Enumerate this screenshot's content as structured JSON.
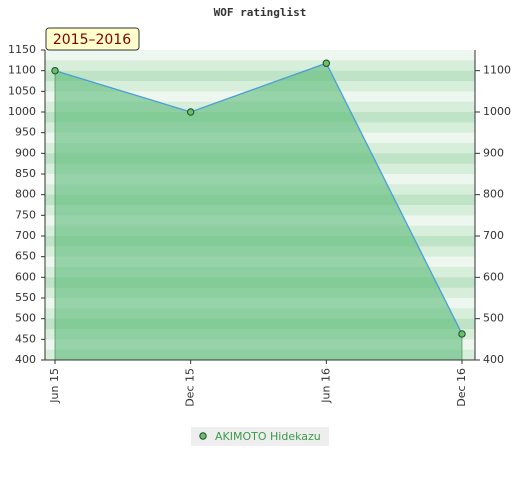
{
  "chart_data": {
    "type": "area",
    "title": "WOF ratinglist",
    "annotation": "2015–2016",
    "categories": [
      "Jun 15",
      "Dec 15",
      "Jun 16",
      "Dec 16"
    ],
    "series": [
      {
        "name": "AKIMOTO Hidekazu",
        "color": "#4a9fd8",
        "fill": "#5cba78",
        "marker": "#6abf69",
        "values": [
          1100,
          1000,
          1118,
          463
        ]
      }
    ],
    "ylim": [
      400,
      1150
    ],
    "yticks": [
      400,
      450,
      500,
      550,
      600,
      650,
      700,
      750,
      800,
      850,
      900,
      950,
      1000,
      1050,
      1100,
      1150
    ],
    "y2lim": [
      400,
      1150
    ],
    "y2ticks": [
      400,
      500,
      600,
      700,
      800,
      900,
      1000,
      1100
    ]
  }
}
